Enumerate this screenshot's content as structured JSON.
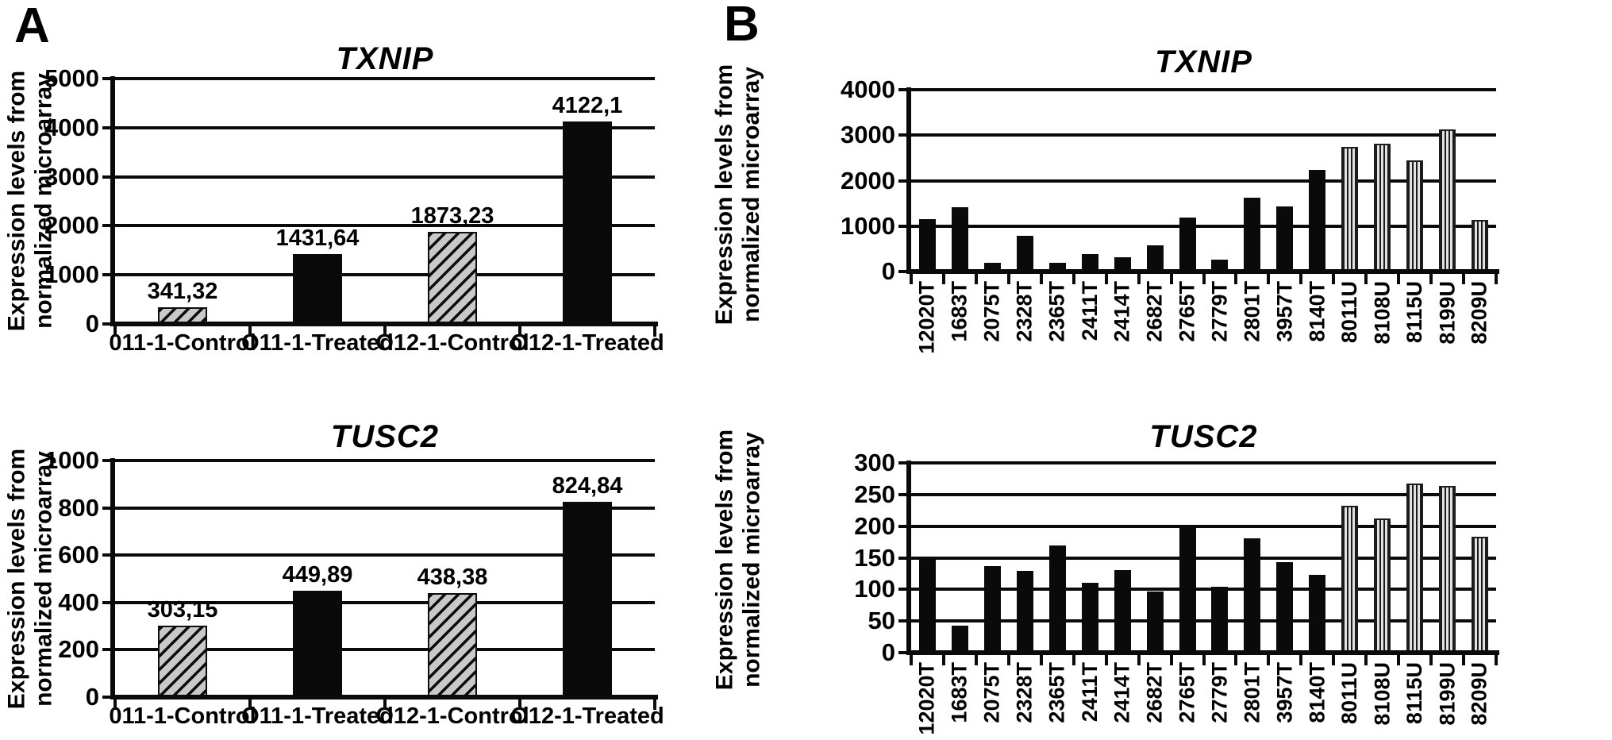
{
  "page": {
    "background": "#ffffff",
    "text_color": "#000000",
    "bar_color": "#0a0a0a",
    "hatch_gray": "#c9c9c9",
    "stripe_gray": "#e2e2e2"
  },
  "panels": [
    {
      "label": "A"
    },
    {
      "label": "B"
    }
  ],
  "y_axis_label": [
    "Expression levels from",
    "normalized microarray"
  ],
  "chart_data": [
    {
      "id": "a-txnip",
      "panel": "A",
      "type": "bar",
      "title": "TXNIP",
      "ylabel": "Expression levels from normalized microarray",
      "ylim": [
        0,
        5000
      ],
      "ystep": 1000,
      "grid": true,
      "legend": "none",
      "categories": [
        "011-1-Control",
        "O11-1-Treated",
        "O12-1-Control",
        "O12-1-Treated"
      ],
      "values": [
        341.32,
        1431.64,
        1873.23,
        4122.1
      ],
      "value_labels": [
        "341,32",
        "1431,64",
        "1873,23",
        "4122,1"
      ],
      "bar_patterns": [
        "hatched",
        "solid",
        "hatched",
        "solid"
      ]
    },
    {
      "id": "a-tusc2",
      "panel": "A",
      "type": "bar",
      "title": "TUSC2",
      "ylabel": "Expression levels from normalized microarray",
      "ylim": [
        0,
        1000
      ],
      "ystep": 200,
      "grid": true,
      "legend": "none",
      "categories": [
        "011-1-Control",
        "O11-1-Treated",
        "O12-1-Control",
        "O12-1-Treated"
      ],
      "values": [
        303.15,
        449.89,
        438.38,
        824.84
      ],
      "value_labels": [
        "303,15",
        "449,89",
        "438,38",
        "824,84"
      ],
      "bar_patterns": [
        "hatched",
        "solid",
        "hatched",
        "solid"
      ]
    },
    {
      "id": "b-txnip",
      "panel": "B",
      "type": "bar",
      "title": "TXNIP",
      "ylabel": "Expression levels from normalized microarray",
      "ylim": [
        0,
        4000
      ],
      "ystep": 1000,
      "grid": true,
      "legend": "none",
      "categories": [
        "12020T",
        "1683T",
        "2075T",
        "2328T",
        "2365T",
        "2411T",
        "2414T",
        "2682T",
        "2765T",
        "2779T",
        "2801T",
        "3957T",
        "8140T",
        "8011U",
        "8108U",
        "8115U",
        "8199U",
        "8209U"
      ],
      "values": [
        1160,
        1420,
        190,
        790,
        185,
        380,
        310,
        570,
        1180,
        265,
        1620,
        1430,
        2230,
        2740,
        2810,
        2450,
        3120,
        1140
      ],
      "bar_patterns": [
        "solid",
        "solid",
        "solid",
        "solid",
        "solid",
        "solid",
        "solid",
        "solid",
        "solid",
        "solid",
        "solid",
        "solid",
        "solid",
        "striped",
        "striped",
        "striped",
        "striped",
        "striped"
      ]
    },
    {
      "id": "b-tusc2",
      "panel": "B",
      "type": "bar",
      "title": "TUSC2",
      "ylabel": "Expression levels from normalized microarray",
      "ylim": [
        0,
        300
      ],
      "ystep": 50,
      "grid": true,
      "legend": "none",
      "categories": [
        "12020T",
        "1683T",
        "2075T",
        "2328T",
        "2365T",
        "2411T",
        "2414T",
        "2682T",
        "2765T",
        "2779T",
        "2801T",
        "3957T",
        "8140T",
        "8011U",
        "8108U",
        "8115U",
        "8199U",
        "8209U"
      ],
      "values": [
        150,
        43,
        137,
        129,
        170,
        111,
        130,
        97,
        202,
        104,
        181,
        143,
        123,
        232,
        212,
        267,
        264,
        183
      ],
      "bar_patterns": [
        "solid",
        "solid",
        "solid",
        "solid",
        "solid",
        "solid",
        "solid",
        "solid",
        "solid",
        "solid",
        "solid",
        "solid",
        "solid",
        "striped",
        "striped",
        "striped",
        "striped",
        "striped"
      ]
    }
  ]
}
